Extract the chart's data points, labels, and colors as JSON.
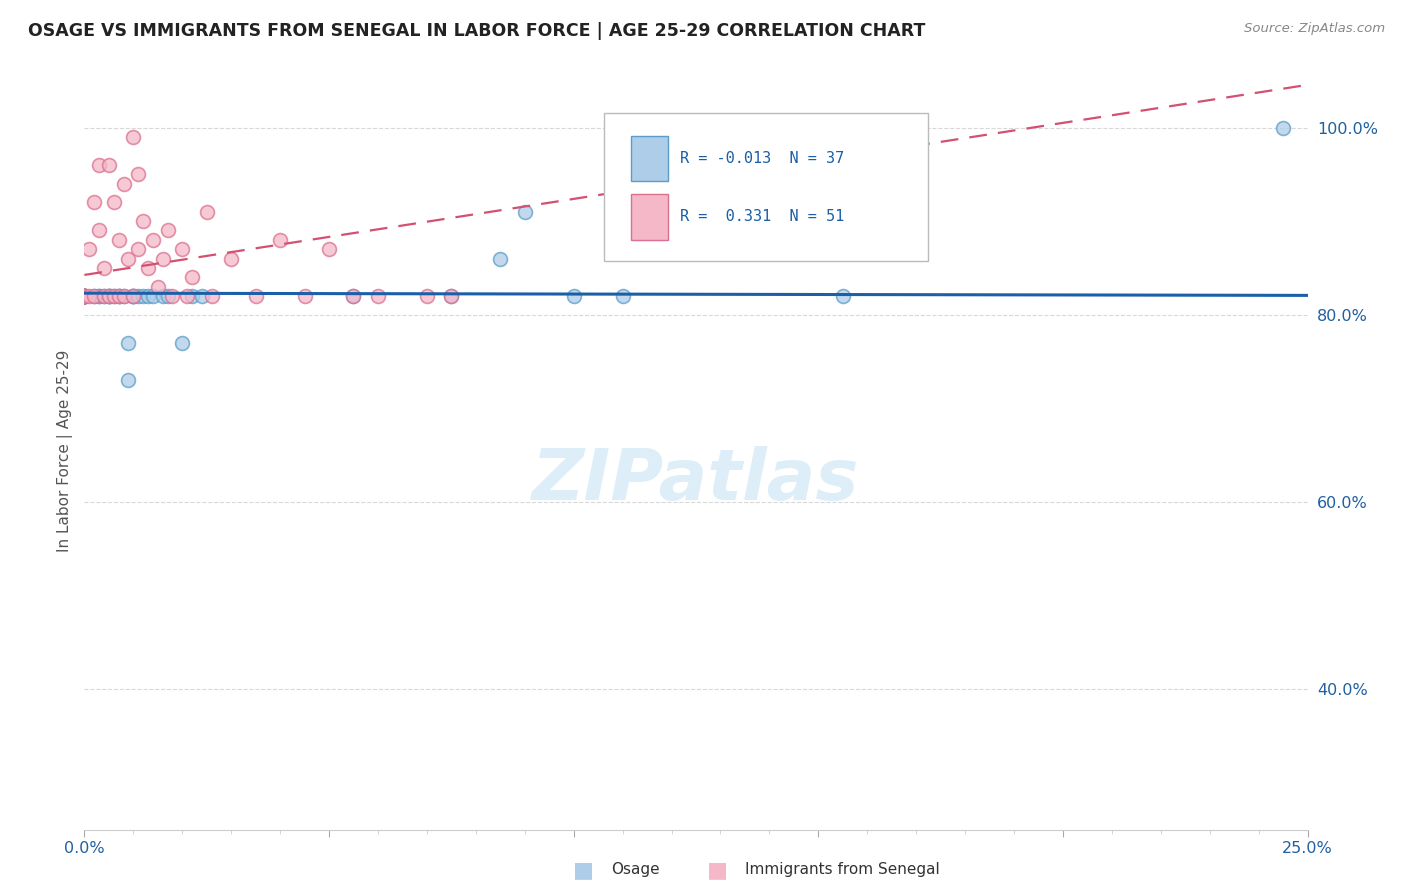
{
  "title": "OSAGE VS IMMIGRANTS FROM SENEGAL IN LABOR FORCE | AGE 25-29 CORRELATION CHART",
  "source": "Source: ZipAtlas.com",
  "ylabel": "In Labor Force | Age 25-29",
  "xmin": 0.0,
  "xmax": 0.25,
  "ymin": 0.25,
  "ymax": 1.06,
  "x_ticks": [
    0.0,
    0.05,
    0.1,
    0.15,
    0.2,
    0.25
  ],
  "x_tick_labels": [
    "0.0%",
    "",
    "",
    "",
    "",
    "25.0%"
  ],
  "y_ticks": [
    0.4,
    0.6,
    0.8,
    1.0
  ],
  "y_tick_labels": [
    "40.0%",
    "60.0%",
    "80.0%",
    "100.0%"
  ],
  "osage_color_face": "#aecde8",
  "osage_color_edge": "#5b9dc9",
  "senegal_color_face": "#f5b8c8",
  "senegal_color_edge": "#d97090",
  "osage_line_color": "#1a5fa8",
  "senegal_line_color": "#d45070",
  "watermark_color": "#ddeef8",
  "osage_x": [
    0.0,
    0.0,
    0.0,
    0.0,
    0.0,
    0.0,
    0.0,
    0.0,
    0.0,
    0.0,
    0.002,
    0.003,
    0.003,
    0.004,
    0.005,
    0.005,
    0.005,
    0.006,
    0.007,
    0.007,
    0.008,
    0.009,
    0.009,
    0.01,
    0.01,
    0.01,
    0.011,
    0.012,
    0.013,
    0.014,
    0.016,
    0.017,
    0.02,
    0.022,
    0.024,
    0.055,
    0.075,
    0.085,
    0.09,
    0.1,
    0.11,
    0.155,
    0.245
  ],
  "osage_y": [
    0.82,
    0.82,
    0.82,
    0.82,
    0.82,
    0.82,
    0.82,
    0.82,
    0.82,
    0.82,
    0.82,
    0.82,
    0.82,
    0.82,
    0.82,
    0.82,
    0.82,
    0.82,
    0.82,
    0.82,
    0.82,
    0.77,
    0.73,
    0.82,
    0.82,
    0.82,
    0.82,
    0.82,
    0.82,
    0.82,
    0.82,
    0.82,
    0.77,
    0.82,
    0.82,
    0.82,
    0.82,
    0.86,
    0.91,
    0.82,
    0.82,
    0.82,
    1.0
  ],
  "senegal_x": [
    0.0,
    0.0,
    0.0,
    0.0,
    0.0,
    0.0,
    0.0,
    0.0,
    0.0,
    0.001,
    0.001,
    0.002,
    0.002,
    0.003,
    0.003,
    0.004,
    0.004,
    0.005,
    0.005,
    0.006,
    0.006,
    0.007,
    0.007,
    0.008,
    0.008,
    0.009,
    0.01,
    0.01,
    0.011,
    0.011,
    0.012,
    0.013,
    0.014,
    0.015,
    0.016,
    0.017,
    0.018,
    0.02,
    0.021,
    0.022,
    0.025,
    0.026,
    0.03,
    0.035,
    0.04,
    0.045,
    0.05,
    0.055,
    0.06,
    0.07,
    0.075
  ],
  "senegal_y": [
    0.82,
    0.82,
    0.82,
    0.82,
    0.82,
    0.82,
    0.82,
    0.82,
    0.82,
    0.87,
    0.82,
    0.92,
    0.82,
    0.96,
    0.89,
    0.85,
    0.82,
    0.96,
    0.82,
    0.92,
    0.82,
    0.88,
    0.82,
    0.94,
    0.82,
    0.86,
    0.99,
    0.82,
    0.95,
    0.87,
    0.9,
    0.85,
    0.88,
    0.83,
    0.86,
    0.89,
    0.82,
    0.87,
    0.82,
    0.84,
    0.91,
    0.82,
    0.86,
    0.82,
    0.88,
    0.82,
    0.87,
    0.82,
    0.82,
    0.82,
    0.82
  ]
}
